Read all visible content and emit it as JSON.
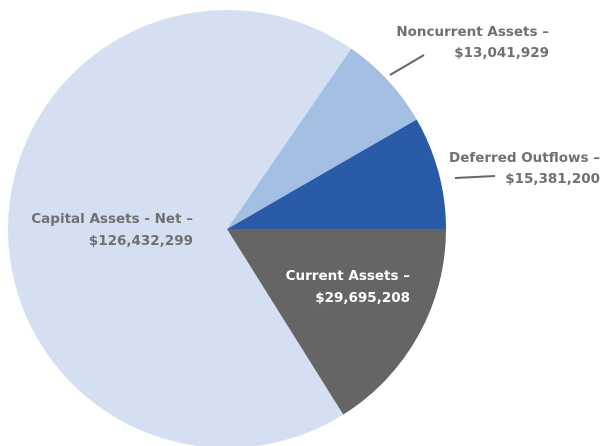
{
  "chart_data": {
    "type": "pie",
    "categories": [
      "Current Assets –",
      "Capital Assets - Net –",
      "Noncurrent Assets –",
      "Deferred Outflows –"
    ],
    "values": [
      29695208,
      126432299,
      13041929,
      15381200
    ],
    "value_labels": [
      "$29,695,208",
      "$126,432,299",
      "$13,041,929",
      "$15,381,200"
    ],
    "colors": [
      "#656565",
      "#d4e0f2",
      "#a4bfe4",
      "#2a5ba8"
    ]
  }
}
